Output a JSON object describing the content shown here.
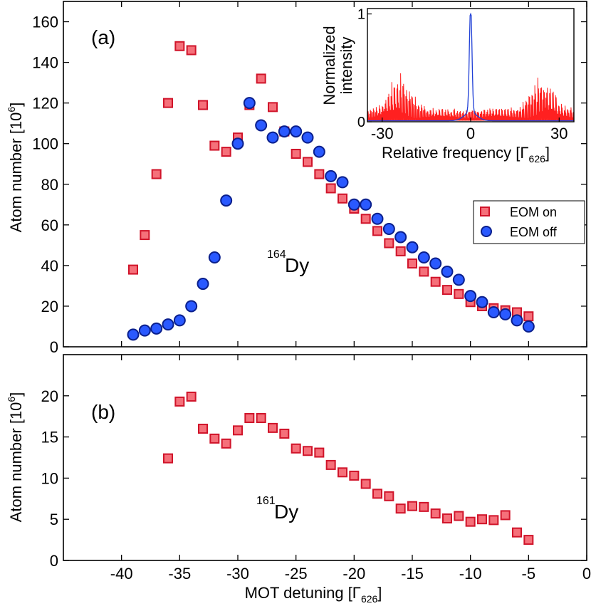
{
  "colors": {
    "eom_on_fill": "#f5707a",
    "eom_on_edge": "#d0142a",
    "eom_off_fill": "#2a59ff",
    "eom_off_edge": "#0a1f8c",
    "inset_red": "#ff2020",
    "inset_blue": "#1f3fd6"
  },
  "chart_data": [
    {
      "type": "scatter",
      "panel_label": "(a)",
      "isotope_label": "Dy",
      "isotope_mass": "164",
      "xlim": [
        -45,
        0
      ],
      "ylim": [
        0,
        170
      ],
      "ylabel": "Atom number [10",
      "ylabel_exp": "6",
      "ylabel_tail": "]",
      "yticks": [
        "0",
        "20",
        "40",
        "60",
        "80",
        "100",
        "120",
        "140",
        "160"
      ],
      "ytick_values": [
        0,
        20,
        40,
        60,
        80,
        100,
        120,
        140,
        160
      ],
      "legend_position": "right",
      "legend": [
        "EOM on",
        "EOM off"
      ],
      "series": [
        {
          "name": "EOM on",
          "marker": "square",
          "x": [
            -39,
            -38,
            -37,
            -36,
            -35,
            -34,
            -33,
            -32,
            -31,
            -30,
            -29,
            -28,
            -27,
            -26,
            -25,
            -24,
            -23,
            -22,
            -21,
            -20,
            -19,
            -18,
            -17,
            -16,
            -15,
            -14,
            -13,
            -12,
            -11,
            -10,
            -9,
            -8,
            -7,
            -6,
            -5
          ],
          "y": [
            38,
            55,
            85,
            120,
            148,
            146,
            119,
            99,
            96,
            103,
            119,
            132,
            118,
            106,
            95,
            91,
            85,
            78,
            73,
            68,
            63,
            57,
            51,
            47,
            41,
            37,
            32,
            28,
            26,
            22,
            20,
            19,
            18,
            17,
            15
          ]
        },
        {
          "name": "EOM off",
          "marker": "circle",
          "x": [
            -39,
            -38,
            -37,
            -36,
            -35,
            -34,
            -33,
            -32,
            -31,
            -30,
            -29,
            -28,
            -27,
            -26,
            -25,
            -24,
            -23,
            -22,
            -21,
            -20,
            -19,
            -18,
            -17,
            -16,
            -15,
            -14,
            -13,
            -12,
            -11,
            -10,
            -9,
            -8,
            -7,
            -6,
            -5
          ],
          "y": [
            6,
            8,
            9,
            11,
            13,
            20,
            31,
            44,
            72,
            100,
            120,
            109,
            103,
            106,
            106,
            103,
            96,
            84,
            81,
            70,
            70,
            63,
            58,
            54,
            49,
            44,
            41,
            37,
            33,
            25,
            22,
            17,
            16,
            13,
            10
          ]
        }
      ]
    },
    {
      "type": "scatter",
      "panel_label": "(b)",
      "isotope_label": "Dy",
      "isotope_mass": "161",
      "xlim": [
        -45,
        0
      ],
      "ylim": [
        0,
        25
      ],
      "xlabel": "MOT detuning [Γ",
      "xlabel_sub": "626",
      "xlabel_tail": "]",
      "ylabel": "Atom number [10",
      "ylabel_exp": "6",
      "ylabel_tail": "]",
      "xticks": [
        "-40",
        "-35",
        "-30",
        "-25",
        "-20",
        "-15",
        "-10",
        "-5",
        "0"
      ],
      "xtick_values": [
        -40,
        -35,
        -30,
        -25,
        -20,
        -15,
        -10,
        -5,
        0
      ],
      "yticks": [
        "0",
        "5",
        "10",
        "15",
        "20"
      ],
      "ytick_values": [
        0,
        5,
        10,
        15,
        20
      ],
      "series": [
        {
          "marker": "square",
          "x": [
            -36,
            -35,
            -34,
            -33,
            -32,
            -31,
            -30,
            -29,
            -28,
            -27,
            -26,
            -25,
            -24,
            -23,
            -22,
            -21,
            -20,
            -19,
            -18,
            -17,
            -16,
            -15,
            -14,
            -13,
            -12,
            -11,
            -10,
            -9,
            -8,
            -7,
            -6,
            -5
          ],
          "y": [
            12.4,
            19.3,
            19.9,
            16.0,
            14.8,
            14.2,
            15.8,
            17.3,
            17.3,
            16.1,
            15.4,
            13.6,
            13.3,
            13.1,
            11.6,
            10.7,
            10.3,
            9.3,
            8.1,
            7.8,
            6.3,
            6.6,
            6.5,
            5.7,
            5.1,
            5.4,
            4.7,
            5.0,
            4.9,
            5.5,
            3.4,
            2.5
          ]
        }
      ]
    },
    {
      "type": "line",
      "panel": "inset",
      "xlim": [
        -35,
        35
      ],
      "ylim": [
        0,
        1.05
      ],
      "xlabel": "Relative frequency [Γ",
      "xlabel_sub": "626",
      "xlabel_tail": "]",
      "ylabel_line1": "Normalized",
      "ylabel_line2": "intensity",
      "xticks": [
        "-30",
        "0",
        "30"
      ],
      "xtick_values": [
        -30,
        0,
        30
      ],
      "yticks": [
        "0",
        "1"
      ],
      "ytick_values": [
        0,
        1
      ],
      "series": [
        {
          "color": "red",
          "description_points": {
            "peaks_at": [
              -24,
              24
            ],
            "peak_height": 0.35
          }
        },
        {
          "color": "blue",
          "description_points": {
            "peak_at": 0,
            "peak_height": 1.0,
            "width": 0.6
          }
        }
      ]
    }
  ]
}
